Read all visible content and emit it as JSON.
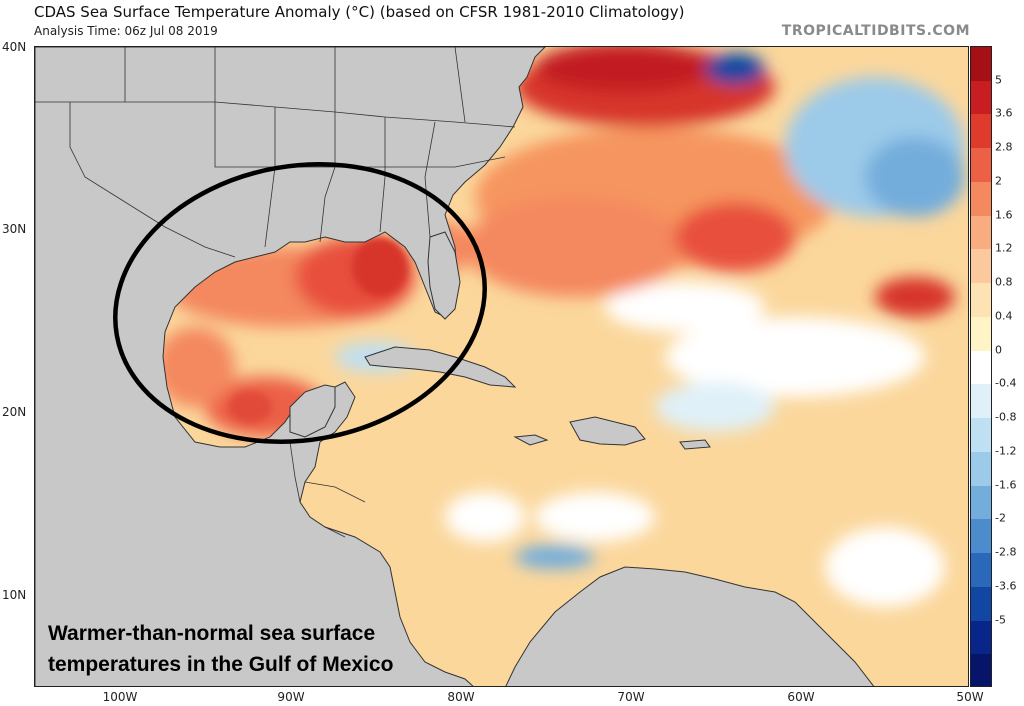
{
  "header": {
    "title": "CDAS Sea Surface Temperature Anomaly (°C) (based on CFSR 1981-2010 Climatology)",
    "analysis_time": "Analysis Time: 06z Jul 08 2019",
    "credit": "TROPICALTIDBITS.COM"
  },
  "axes": {
    "lat_labels": [
      "40N",
      "30N",
      "20N",
      "10N"
    ],
    "lon_labels": [
      "100W",
      "90W",
      "80W",
      "70W",
      "60W",
      "50W"
    ]
  },
  "colorbar": {
    "labels": [
      "5",
      "3.6",
      "2.8",
      "2",
      "1.6",
      "1.2",
      "0.8",
      "0.4",
      "0",
      "-0.4",
      "-0.8",
      "-1.2",
      "-1.6",
      "-2",
      "-2.8",
      "-3.6",
      "-5"
    ],
    "colors": [
      "#a50f15",
      "#c81e22",
      "#de3b2d",
      "#ec6046",
      "#f4885f",
      "#f9ac80",
      "#fcc99e",
      "#fde3b3",
      "#fff4c6",
      "#ffffff",
      "#dff0f8",
      "#bfe0f2",
      "#9ccae9",
      "#73addc",
      "#4d8ccc",
      "#2a68b9",
      "#1146a3",
      "#08268a",
      "#061569"
    ]
  },
  "annotation": {
    "line1": "Warmer-than-normal sea surface",
    "line2": "temperatures in the Gulf of Mexico"
  },
  "colors": {
    "land": "#c8c8c8",
    "border": "#333333",
    "ocean_base": "#fbd79c",
    "warm": "#ec6046",
    "hot": "#d7342b",
    "cool": "#9ccae9",
    "neutral": "#ffffff"
  }
}
